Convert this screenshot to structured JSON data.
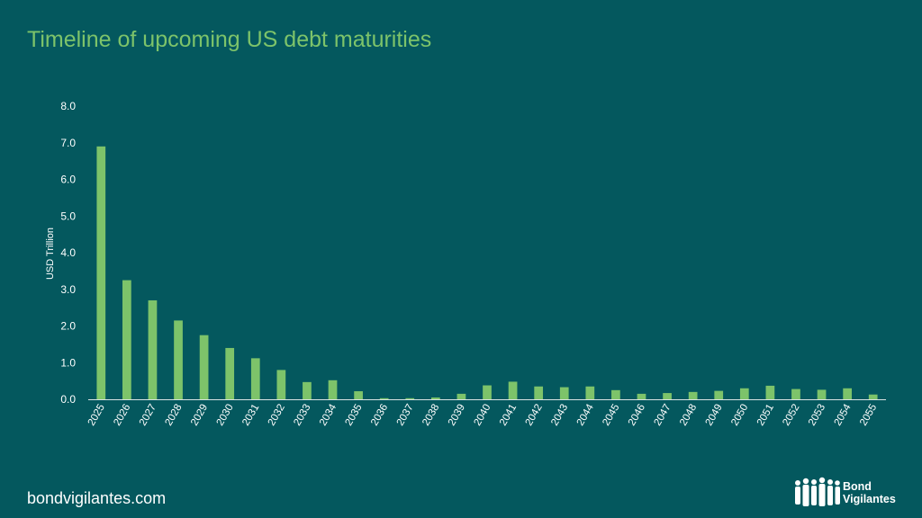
{
  "page": {
    "title": "Timeline of upcoming US debt maturities",
    "footer_url": "bondvigilantes.com",
    "logo": {
      "line1": "Bond",
      "line2": "Vigilantes"
    }
  },
  "colors": {
    "background": "#04585E",
    "title": "#7DC36A",
    "bar": "#7DC36A",
    "text": "#FFFFFF",
    "axis": "#D8E4E4"
  },
  "chart_data": {
    "type": "bar",
    "title": "",
    "xlabel": "",
    "ylabel": "USD Trillion",
    "ylim": [
      0,
      8
    ],
    "yticks": [
      "0.0",
      "1.0",
      "2.0",
      "3.0",
      "4.0",
      "5.0",
      "6.0",
      "7.0",
      "8.0"
    ],
    "grid": false,
    "categories": [
      "2025",
      "2026",
      "2027",
      "2028",
      "2029",
      "2030",
      "2031",
      "2032",
      "2033",
      "2034",
      "2035",
      "2036",
      "2037",
      "2038",
      "2039",
      "2040",
      "2041",
      "2042",
      "2043",
      "2044",
      "2045",
      "2046",
      "2047",
      "2048",
      "2049",
      "2050",
      "2051",
      "2052",
      "2053",
      "2054",
      "2055"
    ],
    "values": [
      6.9,
      3.25,
      2.7,
      2.15,
      1.75,
      1.4,
      1.12,
      0.8,
      0.47,
      0.52,
      0.22,
      0.03,
      0.03,
      0.05,
      0.15,
      0.38,
      0.48,
      0.35,
      0.33,
      0.35,
      0.25,
      0.15,
      0.17,
      0.2,
      0.23,
      0.3,
      0.37,
      0.28,
      0.26,
      0.3,
      0.13
    ]
  }
}
